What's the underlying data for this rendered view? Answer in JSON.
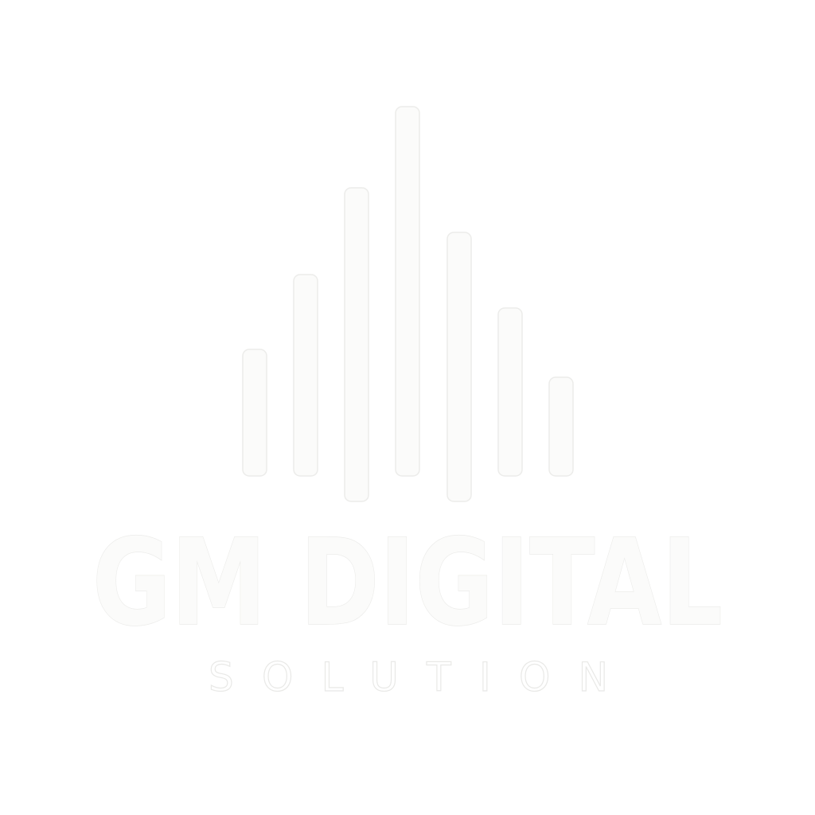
{
  "logo": {
    "title": "GM DIGITAL",
    "subtitle": "SOLUTION",
    "mark": "equalizer-bars-icon",
    "mark_levels": [
      0.34,
      0.55,
      0.85,
      1.0,
      0.73,
      0.46,
      0.27
    ],
    "colors": {
      "background": "#ffffff",
      "logo_fill": "#fbfbfa",
      "outline": "#ececea"
    }
  }
}
